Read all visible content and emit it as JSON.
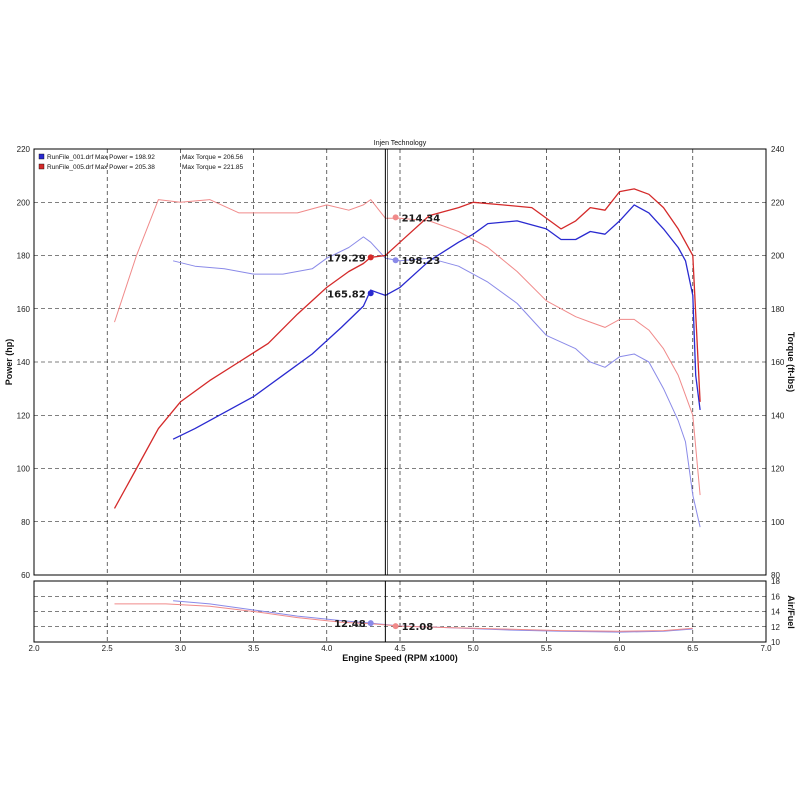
{
  "chart_data": {
    "type": "line",
    "title": "Injen Technology",
    "xlabel": "Engine Speed (RPM x1000)",
    "xlim": [
      2.0,
      7.0
    ],
    "x_ticks": [
      "2.0",
      "2.5",
      "3.0",
      "3.5",
      "4.0",
      "4.5",
      "5.0",
      "5.5",
      "6.0",
      "6.5",
      "7.0"
    ],
    "main_panel": {
      "ylabel_left": "Power (hp)",
      "ylabel_right": "Torque (ft-lbs)",
      "ylim_left": [
        60,
        220
      ],
      "ylim_right": [
        80,
        240
      ],
      "y_ticks_left": [
        "60",
        "80",
        "100",
        "120",
        "140",
        "160",
        "180",
        "200",
        "220"
      ],
      "y_ticks_right": [
        "80",
        "100",
        "120",
        "140",
        "160",
        "180",
        "200",
        "220",
        "240"
      ],
      "grid": true
    },
    "afr_panel": {
      "ylabel": "Air/Fuel",
      "ylim": [
        10,
        18
      ],
      "y_ticks": [
        "10",
        "12",
        "14",
        "16",
        "18"
      ],
      "grid": true
    },
    "legend": [
      {
        "file": "RunFile_001.drf",
        "max_power_label": "Max Power = 198.92",
        "max_torque_label": "Max Torque = 206.56",
        "color": "#2a2ad0"
      },
      {
        "file": "RunFile_005.drf",
        "max_power_label": "Max Power = 205.38",
        "max_torque_label": "Max Torque = 221.85",
        "color": "#d42a2a"
      }
    ],
    "legend_position": "top-left",
    "series": [
      {
        "name": "RunFile_001.drf",
        "measure": "power",
        "axis": "left",
        "color": "#2a2ad0",
        "x": [
          2.95,
          3.1,
          3.3,
          3.5,
          3.7,
          3.9,
          4.1,
          4.25,
          4.3,
          4.35,
          4.4,
          4.5,
          4.7,
          4.9,
          5.0,
          5.1,
          5.3,
          5.5,
          5.6,
          5.7,
          5.8,
          5.9,
          6.0,
          6.1,
          6.2,
          6.3,
          6.4,
          6.45,
          6.5,
          6.52,
          6.55
        ],
        "values": [
          111,
          115,
          121,
          127,
          135,
          143,
          153,
          161,
          167,
          166,
          165,
          168,
          178,
          185,
          188,
          192,
          193,
          190,
          186,
          186,
          189,
          188,
          193,
          199,
          196,
          190,
          183,
          178,
          165,
          135,
          122
        ]
      },
      {
        "name": "RunFile_005.drf",
        "measure": "power",
        "axis": "left",
        "color": "#d42a2a",
        "x": [
          2.55,
          2.7,
          2.85,
          3.0,
          3.2,
          3.4,
          3.6,
          3.8,
          4.0,
          4.15,
          4.25,
          4.3,
          4.4,
          4.5,
          4.7,
          4.9,
          5.0,
          5.2,
          5.4,
          5.6,
          5.7,
          5.8,
          5.9,
          6.0,
          6.1,
          6.2,
          6.3,
          6.4,
          6.5,
          6.55
        ],
        "values": [
          85,
          100,
          115,
          125,
          133,
          140,
          147,
          158,
          168,
          174,
          177,
          179.29,
          180,
          185,
          195,
          198,
          200,
          199,
          198,
          190,
          193,
          198,
          197,
          204,
          205,
          203,
          198,
          190,
          180,
          125
        ]
      },
      {
        "name": "RunFile_001.drf",
        "measure": "torque",
        "axis": "right",
        "color": "#8a8ae8",
        "x": [
          2.95,
          3.1,
          3.3,
          3.5,
          3.7,
          3.9,
          4.0,
          4.15,
          4.25,
          4.3,
          4.4,
          4.5,
          4.7,
          4.9,
          5.1,
          5.3,
          5.5,
          5.7,
          5.8,
          5.9,
          6.0,
          6.1,
          6.2,
          6.3,
          6.4,
          6.45,
          6.5,
          6.55
        ],
        "values": [
          198,
          196,
          195,
          193,
          193,
          195,
          199,
          203,
          207,
          205,
          199,
          198,
          199,
          196,
          190,
          182,
          170,
          165,
          160,
          158,
          162,
          163,
          160,
          150,
          138,
          130,
          110,
          98
        ]
      },
      {
        "name": "RunFile_005.drf",
        "measure": "torque",
        "axis": "right",
        "color": "#f08a8a",
        "x": [
          2.55,
          2.7,
          2.85,
          3.0,
          3.2,
          3.4,
          3.6,
          3.8,
          4.0,
          4.15,
          4.25,
          4.3,
          4.4,
          4.5,
          4.7,
          4.9,
          5.1,
          5.3,
          5.5,
          5.7,
          5.8,
          5.9,
          6.0,
          6.1,
          6.2,
          6.3,
          6.4,
          6.5,
          6.55
        ],
        "values": [
          175,
          200,
          221,
          220,
          221,
          216,
          216,
          216,
          219,
          217,
          219,
          221,
          214,
          214,
          213,
          209,
          203,
          194,
          183,
          177,
          175,
          173,
          176,
          176,
          172,
          165,
          155,
          140,
          110
        ]
      },
      {
        "name": "RunFile_001.drf",
        "measure": "air_fuel",
        "axis": "afr",
        "color": "#8a8ae8",
        "x": [
          2.95,
          3.2,
          3.5,
          3.8,
          4.1,
          4.3,
          4.5,
          4.8,
          5.2,
          5.6,
          6.0,
          6.3,
          6.5
        ],
        "values": [
          15.4,
          15.0,
          14.2,
          13.4,
          12.8,
          12.48,
          12.1,
          11.9,
          11.6,
          11.4,
          11.3,
          11.4,
          11.7
        ]
      },
      {
        "name": "RunFile_005.drf",
        "measure": "air_fuel",
        "axis": "afr",
        "color": "#f08a8a",
        "x": [
          2.55,
          2.9,
          3.2,
          3.5,
          3.8,
          4.1,
          4.3,
          4.5,
          4.8,
          5.2,
          5.6,
          6.0,
          6.3,
          6.5
        ],
        "values": [
          15.0,
          15.0,
          14.7,
          14.0,
          13.2,
          12.6,
          12.4,
          12.08,
          11.9,
          11.7,
          11.5,
          11.4,
          11.5,
          11.8
        ]
      }
    ],
    "cursor_x": 4.4,
    "annotations": [
      {
        "label": "214.34",
        "x": 4.47,
        "y": 214.34,
        "axis": "right",
        "color": "#f08a8a"
      },
      {
        "label": "179.29",
        "x": 4.3,
        "y": 179.29,
        "axis": "left",
        "color": "#d42a2a"
      },
      {
        "label": "198.23",
        "x": 4.47,
        "y": 198.23,
        "axis": "right",
        "color": "#8a8ae8"
      },
      {
        "label": "165.82",
        "x": 4.3,
        "y": 165.82,
        "axis": "left",
        "color": "#2a2ad0"
      },
      {
        "label": "12.48",
        "x": 4.3,
        "y": 12.48,
        "axis": "afr",
        "color": "#8a8ae8"
      },
      {
        "label": "12.08",
        "x": 4.47,
        "y": 12.08,
        "axis": "afr",
        "color": "#f08a8a"
      }
    ]
  }
}
